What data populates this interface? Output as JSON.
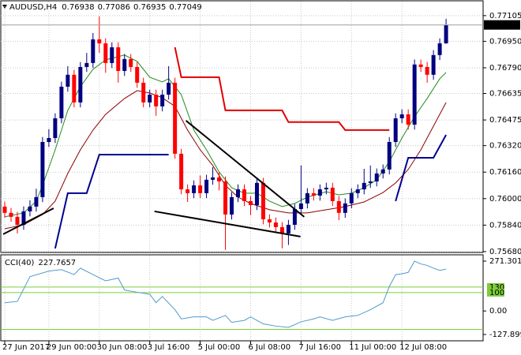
{
  "chart_data": {
    "type": "candlestick",
    "symbol": "AUDUSD,H4",
    "up_color": "#000080",
    "down_color": "#ff0000",
    "grid": true,
    "xlim": [
      -0.625,
      75.875
    ],
    "xticks": [
      {
        "value": 0,
        "label": "27 Jun 2017"
      },
      {
        "value": 7,
        "label": "29 Jun 00:00"
      },
      {
        "value": 15,
        "label": "30 Jun 08:00"
      },
      {
        "value": 23,
        "label": "3 Jul 16:00"
      },
      {
        "value": 31,
        "label": "5 Jul 00:00"
      },
      {
        "value": 39,
        "label": "6 Jul 08:00"
      },
      {
        "value": 47,
        "label": "7 Jul 16:00"
      },
      {
        "value": 55,
        "label": "11 Jul 00:00"
      },
      {
        "value": 63,
        "label": "12 Jul 08:00"
      }
    ],
    "ylim": [
      0.75675,
      0.7719
    ],
    "yticks": [
      0.77105,
      {
        "value": 0.7695,
        "label": "0.76950"
      },
      {
        "value": 0.7679,
        "label": "0.76790"
      },
      0.76635,
      0.76475,
      {
        "value": 0.7632,
        "label": "0.76320"
      },
      {
        "value": 0.7616,
        "label": "0.76160"
      },
      {
        "value": 0.76,
        "label": "0.76000"
      },
      {
        "value": 0.7584,
        "label": "0.75840"
      },
      {
        "value": 0.7568,
        "label": "0.75680"
      }
    ],
    "current_price": 0.77049,
    "candles": {
      "open": [
        0.75952,
        0.75914,
        0.7589,
        0.75842,
        0.75923,
        0.75952,
        0.76009,
        0.76342,
        0.76366,
        0.76485,
        0.76676,
        0.76748,
        0.76581,
        0.76795,
        0.76819,
        0.76962,
        0.76938,
        0.76819,
        0.76914,
        0.76771,
        0.76843,
        0.76795,
        0.767,
        0.76581,
        0.76628,
        0.76557,
        0.76628,
        0.767,
        0.76271,
        0.76056,
        0.76033,
        0.7608,
        0.76033,
        0.76114,
        0.76128,
        0.76104,
        0.75904,
        0.76009,
        0.76056,
        0.75985,
        0.75961,
        0.76095,
        0.75875,
        0.75856,
        0.75828,
        0.7579,
        0.75842,
        0.75937,
        0.75971,
        0.76033,
        0.76018,
        0.76056,
        0.76066,
        0.75985,
        0.75914,
        0.75971,
        0.76033,
        0.76056,
        0.76095,
        0.76104,
        0.76152,
        0.76176,
        0.76342,
        0.76485,
        0.76509,
        0.76447,
        0.7681,
        0.76795,
        0.76748,
        0.76867,
        0.76938
      ],
      "high": [
        0.75982,
        0.75944,
        0.7592,
        0.75953,
        0.7599,
        0.7606,
        0.76372,
        0.7642,
        0.76515,
        0.76706,
        0.768,
        0.76778,
        0.76825,
        0.7688,
        0.77,
        0.771,
        0.76968,
        0.76944,
        0.76944,
        0.76873,
        0.76873,
        0.76825,
        0.7673,
        0.76658,
        0.76658,
        0.76658,
        0.768,
        0.7673,
        0.76301,
        0.76086,
        0.7611,
        0.7614,
        0.76144,
        0.7619,
        0.76158,
        0.76134,
        0.76039,
        0.76086,
        0.76086,
        0.76015,
        0.76125,
        0.76125,
        0.75905,
        0.75886,
        0.75858,
        0.75872,
        0.75967,
        0.762,
        0.76063,
        0.76063,
        0.76086,
        0.76096,
        0.76096,
        0.76015,
        0.76001,
        0.76063,
        0.76086,
        0.7618,
        0.762,
        0.76182,
        0.76206,
        0.76372,
        0.76515,
        0.76539,
        0.76539,
        0.7684,
        0.7684,
        0.76825,
        0.76897,
        0.76968,
        0.77086
      ],
      "low": [
        0.75884,
        0.7586,
        0.7579,
        0.75812,
        0.75893,
        0.75922,
        0.75979,
        0.76312,
        0.76336,
        0.76455,
        0.76646,
        0.76551,
        0.76551,
        0.76765,
        0.76789,
        0.7688,
        0.7676,
        0.76789,
        0.767,
        0.76741,
        0.76765,
        0.7667,
        0.76551,
        0.76551,
        0.765,
        0.76527,
        0.76598,
        0.76241,
        0.76026,
        0.7598,
        0.76003,
        0.76003,
        0.76003,
        0.76084,
        0.7605,
        0.7569,
        0.75874,
        0.75979,
        0.75955,
        0.759,
        0.75931,
        0.75845,
        0.75826,
        0.75798,
        0.757,
        0.7572,
        0.75812,
        0.75907,
        0.75941,
        0.75988,
        0.75988,
        0.76026,
        0.75955,
        0.7587,
        0.75884,
        0.75941,
        0.76003,
        0.76026,
        0.76065,
        0.76074,
        0.76122,
        0.76146,
        0.76312,
        0.76455,
        0.76417,
        0.76417,
        0.76765,
        0.767,
        0.76718,
        0.76837,
        0.76935
      ],
      "close": [
        0.75914,
        0.7589,
        0.75842,
        0.75923,
        0.75952,
        0.76009,
        0.76342,
        0.76366,
        0.76485,
        0.76676,
        0.76748,
        0.76581,
        0.76795,
        0.76819,
        0.76962,
        0.76938,
        0.76819,
        0.76914,
        0.76771,
        0.76843,
        0.76795,
        0.767,
        0.76581,
        0.76628,
        0.76557,
        0.76628,
        0.767,
        0.76271,
        0.76056,
        0.76033,
        0.7608,
        0.76033,
        0.76114,
        0.76128,
        0.76104,
        0.75904,
        0.76009,
        0.76056,
        0.75985,
        0.75961,
        0.76095,
        0.75875,
        0.75856,
        0.75828,
        0.7579,
        0.75842,
        0.75937,
        0.75971,
        0.76033,
        0.76018,
        0.76056,
        0.76066,
        0.75985,
        0.75914,
        0.75971,
        0.76033,
        0.76056,
        0.76095,
        0.76104,
        0.76152,
        0.76176,
        0.76342,
        0.76485,
        0.76509,
        0.76447,
        0.7681,
        0.76795,
        0.76748,
        0.76867,
        0.76938,
        0.77049
      ]
    },
    "overlays": [
      {
        "color": "#1e8c1e",
        "width": 1,
        "x": [
          0,
          3,
          5,
          6,
          8,
          10,
          12,
          14,
          16,
          19,
          21,
          23,
          25,
          26,
          28,
          30,
          32,
          34,
          36,
          38,
          40,
          42,
          44,
          46,
          48,
          51,
          53,
          55,
          57,
          59,
          61,
          63,
          65,
          67,
          69,
          70
        ],
        "values": [
          0.7589,
          0.75914,
          0.75985,
          0.7608,
          0.76295,
          0.76533,
          0.76676,
          0.76781,
          0.76838,
          0.76867,
          0.76829,
          0.76733,
          0.76705,
          0.76724,
          0.76628,
          0.76414,
          0.76295,
          0.76161,
          0.76066,
          0.76033,
          0.76033,
          0.75985,
          0.75952,
          0.75971,
          0.76009,
          0.76042,
          0.76023,
          0.76033,
          0.76066,
          0.76114,
          0.76223,
          0.76366,
          0.76495,
          0.76605,
          0.76724,
          0.76762
        ]
      },
      {
        "color": "#8b0000",
        "width": 1,
        "x": [
          0,
          3,
          6,
          8,
          10,
          12,
          14,
          16,
          19,
          21,
          23,
          25,
          27,
          29,
          31,
          33,
          35,
          37,
          39,
          42,
          45,
          48,
          51,
          54,
          57,
          60,
          62,
          64,
          66,
          68,
          70
        ],
        "values": [
          0.75818,
          0.75842,
          0.75904,
          0.75985,
          0.76152,
          0.76295,
          0.76414,
          0.76509,
          0.76605,
          0.76652,
          0.76638,
          0.76609,
          0.76557,
          0.76414,
          0.76295,
          0.762,
          0.7608,
          0.76009,
          0.75971,
          0.75933,
          0.75914,
          0.75914,
          0.75933,
          0.75952,
          0.7598,
          0.76037,
          0.76095,
          0.76176,
          0.76295,
          0.76438,
          0.76581
        ]
      },
      {
        "color": "#e00000",
        "width": 2,
        "x": [
          27,
          28,
          34,
          35,
          44,
          45,
          53,
          54,
          61
        ],
        "values": [
          0.76914,
          0.76733,
          0.76733,
          0.76533,
          0.76533,
          0.76462,
          0.76462,
          0.76414,
          0.76414
        ]
      },
      {
        "color": "#000090",
        "width": 2,
        "x": [
          8,
          10,
          13,
          15,
          26,
          44,
          62,
          64,
          68,
          70
        ],
        "values": [
          0.75699,
          0.76033,
          0.76033,
          0.76266,
          0.76266,
          null,
          0.75985,
          0.76247,
          0.76247,
          0.76385
        ]
      }
    ],
    "trendlines": [
      {
        "x": [
          -0.25,
          7.75
        ],
        "values": [
          0.75785,
          0.75942
        ]
      },
      {
        "x": [
          23.75,
          46.9
        ],
        "values": [
          0.75923,
          0.75771
        ]
      },
      {
        "x": [
          28.75,
          47.5
        ],
        "values": [
          0.76471,
          0.7589
        ]
      }
    ],
    "cci": {
      "label": "CCI(40)",
      "color": "#4f9acd",
      "level_color": "#7ccd3c",
      "ylim": [
        -127.899,
        271.3014
      ],
      "yticks": [
        271.3014,
        {
          "value": 0,
          "label": "0.00"
        },
        -127.899
      ],
      "levels": [
        130,
        100
      ],
      "unlabeled_levels": [
        -100
      ],
      "x": [
        0,
        2,
        4,
        7,
        9,
        11,
        12,
        14,
        16,
        18,
        19,
        21,
        23,
        24,
        25,
        27,
        28,
        30,
        32,
        33,
        35,
        36,
        38,
        39,
        41,
        43,
        45,
        47,
        49,
        50,
        52,
        54,
        56,
        58,
        60,
        61,
        62,
        63,
        64,
        65,
        66,
        67,
        68,
        69,
        70
      ],
      "values": [
        45,
        52,
        187,
        217,
        225,
        198,
        233,
        198,
        164,
        179,
        114,
        102,
        91,
        45,
        79,
        7,
        -43,
        -32,
        -32,
        -51,
        -24,
        -62,
        -51,
        -32,
        -70,
        -82,
        -89,
        -59,
        -43,
        -32,
        -51,
        -32,
        -24,
        7,
        45,
        133,
        198,
        202,
        210,
        271.3014,
        256,
        248,
        233,
        221,
        227.7657
      ]
    }
  }
}
